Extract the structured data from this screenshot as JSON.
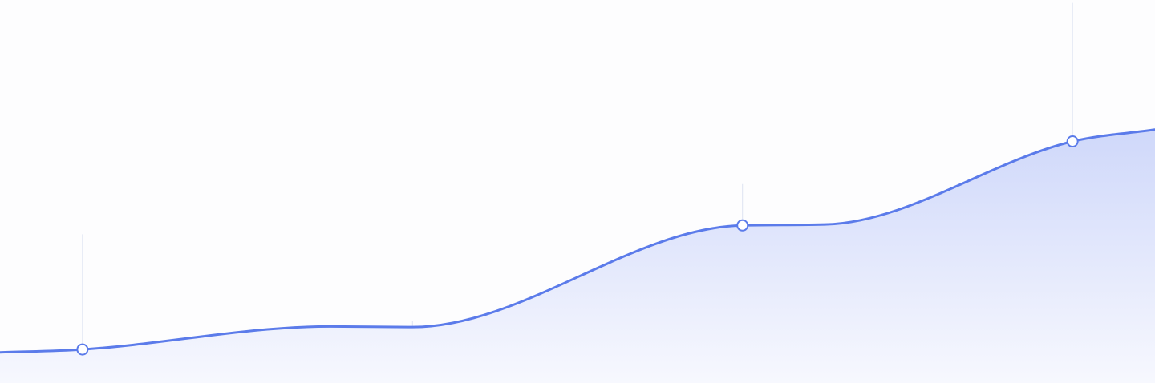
{
  "chart_data": {
    "type": "area",
    "title": "",
    "xlabel": "",
    "ylabel": "",
    "grid": false,
    "legend": "none",
    "line_color": "#5B7BEA",
    "fill_color_top": "#CFD8FA",
    "fill_color_bottom": "#F7F8FE",
    "guide_color": "#DDE3F2",
    "marker_fill": "#ffffff",
    "curve_points": [
      {
        "x": 0,
        "y": 0.4
      },
      {
        "x": 1,
        "y": 1.4
      },
      {
        "x": 4,
        "y": 9.2
      },
      {
        "x": 5,
        "y": 9.0
      },
      {
        "x": 9,
        "y": 43.5
      },
      {
        "x": 10,
        "y": 43.8
      },
      {
        "x": 13,
        "y": 72.0
      },
      {
        "x": 14,
        "y": 76.0
      }
    ],
    "markers": [
      {
        "x": 1,
        "y": 1.4,
        "show_marker": true
      },
      {
        "x": 5,
        "y": 9.0,
        "show_marker": false
      },
      {
        "x": 9,
        "y": 43.5,
        "show_marker": true
      },
      {
        "x": 13,
        "y": 72.0,
        "show_marker": true
      }
    ],
    "guides": [
      {
        "x": 1,
        "y_top": 40.5,
        "y_bottom": -8.0
      },
      {
        "x": 5,
        "y_top": 11.0,
        "y_bottom": -4.0
      },
      {
        "x": 9,
        "y_top": 57.5,
        "y_bottom": 17.5
      },
      {
        "x": 13,
        "y_top": 119.0,
        "y_bottom": 36.0
      }
    ],
    "xlim": [
      0,
      14
    ],
    "ylim": [
      -10,
      120
    ]
  }
}
